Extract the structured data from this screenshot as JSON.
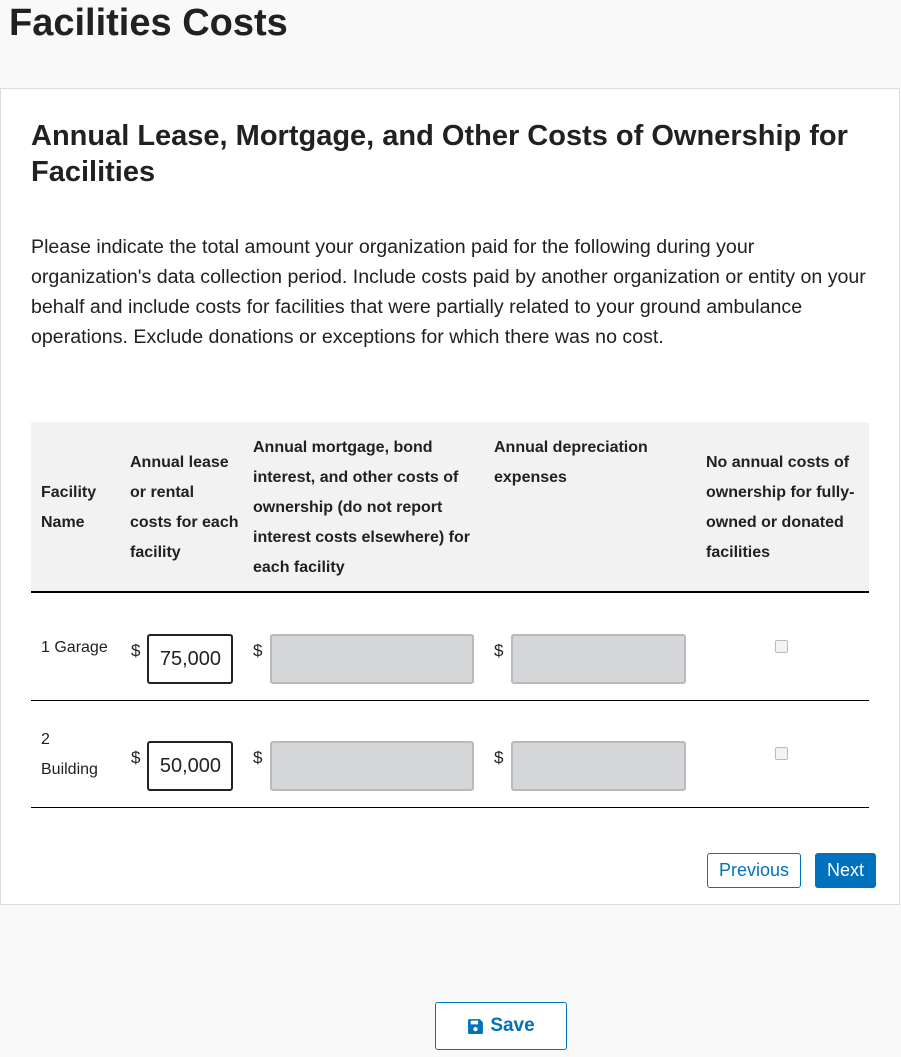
{
  "page": {
    "title": "Facilities Costs"
  },
  "section": {
    "heading": "Annual Lease, Mortgage, and Other Costs of Ownership for Facilities",
    "intro": "Please indicate the total amount your organization paid for the following during your organization's data collection period. Include costs paid by another organization or entity on your behalf and include costs for facilities that were partially related to your ground ambulance operations. Exclude donations or exceptions for which there was no cost."
  },
  "table": {
    "headers": [
      "Facility Name",
      "Annual lease or rental costs for each facility",
      "Annual mortgage, bond interest, and other costs of ownership (do not report interest costs elsewhere) for each facility",
      "Annual depreciation expenses",
      "No annual costs of ownership for fully-owned or donated facilities"
    ],
    "currency": "$",
    "rows": [
      {
        "name": "1 Garage",
        "lease": "75,000",
        "mortgage": "",
        "depreciation": "",
        "no_costs": false
      },
      {
        "name": "2 Building",
        "lease": "50,000",
        "mortgage": "",
        "depreciation": "",
        "no_costs": false
      }
    ]
  },
  "nav": {
    "previous": "Previous",
    "next": "Next",
    "save": "Save"
  },
  "colors": {
    "accent": "#0071bc"
  }
}
